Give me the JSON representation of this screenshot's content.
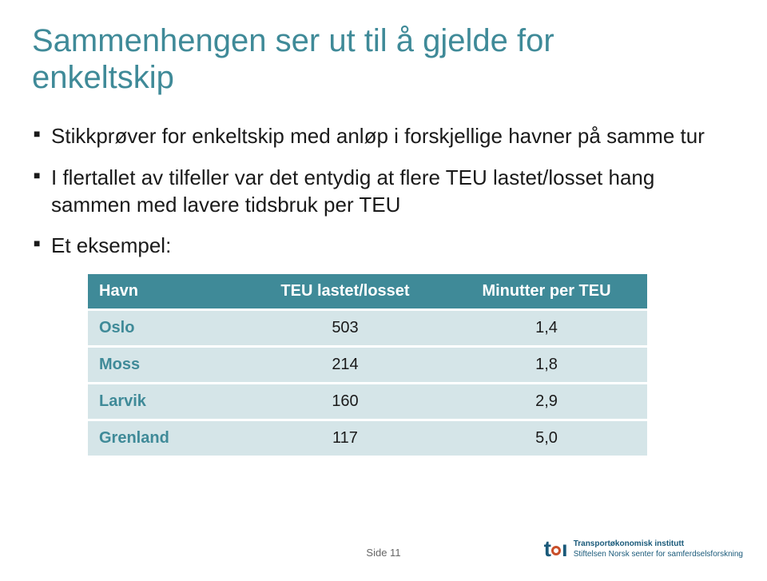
{
  "title_line1": "Sammenhengen ser ut til å gjelde for",
  "title_line2": "enkeltskip",
  "title_color": "#3f8a98",
  "title_fontsize": 40,
  "bullet_color": "#1a1a1a",
  "bullet_fontsize": 26,
  "bullets": [
    "Stikkprøver for enkeltskip med anløp i forskjellige havner på samme tur",
    "I flertallet av tilfeller var det entydig at flere TEU lastet/losset hang sammen med lavere tidsbruk per TEU",
    "Et eksempel:"
  ],
  "table": {
    "header_bg": "#3f8a98",
    "header_color": "#ffffff",
    "row_bg": "#d5e5e8",
    "row_divider": "#ffffff",
    "port_color": "#3f8a98",
    "value_color": "#1a1a1a",
    "font_size": 20,
    "columns": [
      "Havn",
      "TEU lastet/losset",
      "Minutter per TEU"
    ],
    "rows": [
      [
        "Oslo",
        "503",
        "1,4"
      ],
      [
        "Moss",
        "214",
        "1,8"
      ],
      [
        "Larvik",
        "160",
        "2,9"
      ],
      [
        "Grenland",
        "117",
        "5,0"
      ]
    ],
    "col_widths": [
      "28%",
      "36%",
      "36%"
    ]
  },
  "footer": {
    "page_label": "Side 11",
    "logo_t_color": "#1a5a7a",
    "logo_o_color": "#c94f2a",
    "logo_i_color": "#1a5a7a",
    "logo_line1": "Transportøkonomisk institutt",
    "logo_line2": "Stiftelsen Norsk senter for samferdselsforskning"
  }
}
